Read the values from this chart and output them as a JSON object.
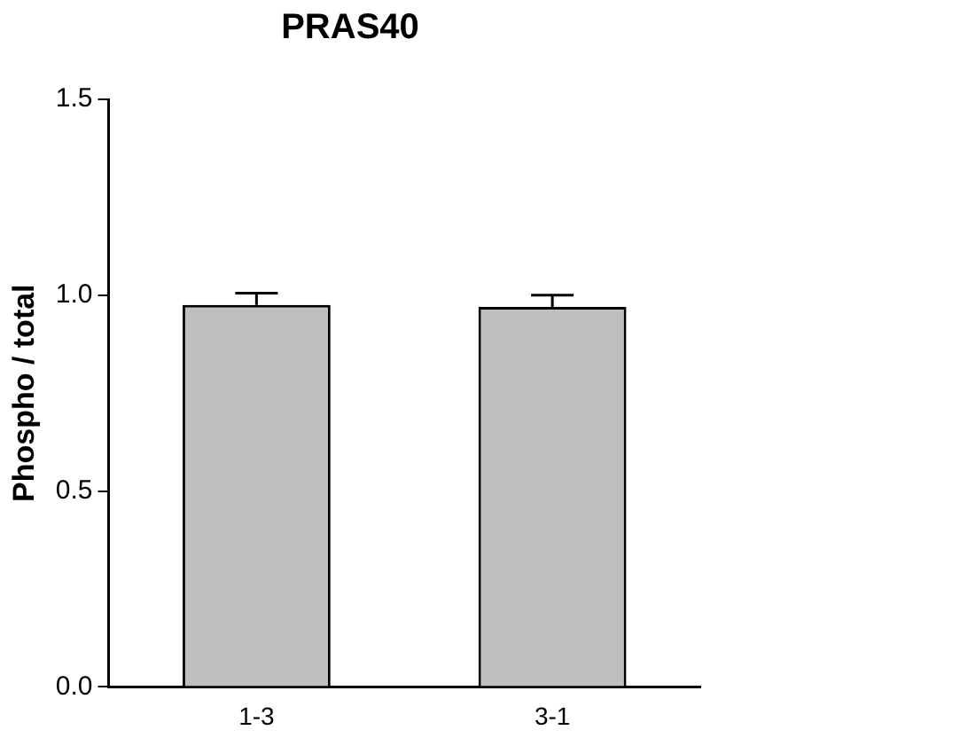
{
  "chart_data": {
    "type": "bar",
    "title": "PRAS40",
    "ylabel": "Phospho / total",
    "categories": [
      "1-3",
      "3-1"
    ],
    "values": [
      0.975,
      0.97
    ],
    "errors": [
      [
        0.975,
        1.005
      ],
      [
        0.97,
        1.0
      ]
    ],
    "color": "#bebebe",
    "ylim": [
      0,
      1.5
    ],
    "yticks": [
      {
        "value": 0,
        "label": "0.0"
      },
      0.5,
      {
        "value": 1,
        "label": "1.0"
      },
      1.5
    ],
    "grid": false,
    "legend": false
  }
}
